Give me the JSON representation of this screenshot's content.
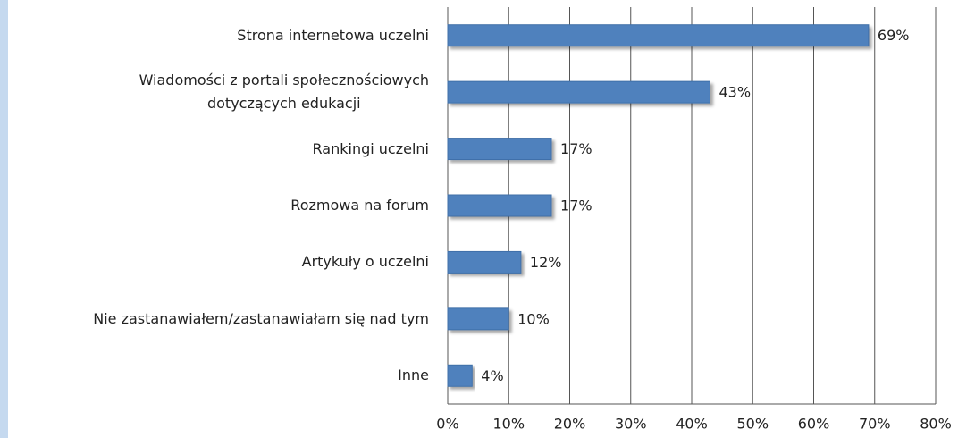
{
  "chart_data": {
    "type": "hbar",
    "categories": [
      "Strona internetowa uczelni",
      "Wiadomości z portali społecznościowych\ndotyczących edukacji",
      "Rankingi uczelni",
      "Rozmowa na forum",
      "Artykuły o uczelni",
      "Nie zastanawiałem/zastanawiałam się nad tym",
      "Inne"
    ],
    "values": [
      69,
      43,
      17,
      17,
      12,
      10,
      4
    ],
    "value_labels": [
      "69%",
      "43%",
      "17%",
      "17%",
      "12%",
      "10%",
      "4%"
    ],
    "color": "#4f81bd",
    "xlim": [
      0,
      80
    ],
    "xticks": [
      {
        "value": 0,
        "label": "0%"
      },
      {
        "value": 10,
        "label": "10%"
      },
      {
        "value": 20,
        "label": "20%"
      },
      {
        "value": 30,
        "label": "30%"
      },
      {
        "value": 40,
        "label": "40%"
      },
      {
        "value": 50,
        "label": "50%"
      },
      {
        "value": 60,
        "label": "60%"
      },
      {
        "value": 70,
        "label": "70%"
      },
      {
        "value": 80,
        "label": "80%"
      }
    ],
    "grid": true
  }
}
